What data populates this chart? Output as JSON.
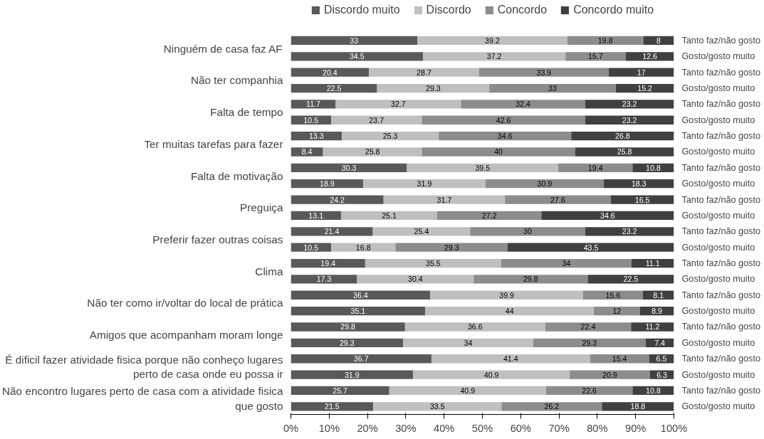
{
  "chart_data": {
    "type": "bar",
    "orientation": "horizontal",
    "stacked": true,
    "data_labels": true,
    "legend": "top",
    "grid": false,
    "categories": [
      "Tanto faz/não gosto",
      "Gosto/gosto muito",
      "Tanto faz/não gosto",
      "Gosto/gosto muito",
      "Tanto faz/não gosto",
      "Gosto/gosto muito",
      "Tanto faz/não gosto",
      "Gosto/gosto muito",
      "Tanto faz/não gosto",
      "Gosto/gosto muito",
      "Tanto faz/não gosto",
      "Gosto/gosto muito",
      "Tanto faz/não gosto",
      "Gosto/gosto muito",
      "Tanto faz/não gosto",
      "Gosto/gosto muito",
      "Tanto faz/não gosto",
      "Gosto/gosto muito",
      "Tanto faz/não gosto",
      "Gosto/gosto muito",
      "Tanto faz/não gosto",
      "Gosto/gosto muito",
      "Tanto faz/não gosto",
      "Gosto/gosto muito"
    ],
    "annotations": [
      "Ninguém de casa faz AF",
      "Não ter companhia",
      "Falta de tempo",
      "Ter muitas tarefas para fazer",
      "Falta de motivação",
      "Preguiça",
      "Preferir fazer outras coisas",
      "Clima",
      "Não ter como ir/voltar do local de prática",
      "Amigos que acompanham moram longe",
      "É dificil fazer atividade fisica porque não conheço lugares\nperto de casa onde eu possa ir",
      "Não encontro lugares perto de casa com a atividade fisica\nque gosto"
    ],
    "xlim": [
      0,
      100
    ],
    "xticks": [
      {
        "value": 0,
        "label": "0%"
      },
      {
        "value": 10,
        "label": "10%"
      },
      {
        "value": 20,
        "label": "20%"
      },
      {
        "value": 30,
        "label": "30%"
      },
      {
        "value": 40,
        "label": "40%"
      },
      {
        "value": 50,
        "label": "50%"
      },
      {
        "value": 60,
        "label": "60%"
      },
      {
        "value": 70,
        "label": "70%"
      },
      {
        "value": 80,
        "label": "80%"
      },
      {
        "value": 90,
        "label": "90%"
      },
      {
        "value": 100,
        "label": "100%"
      }
    ],
    "series": [
      {
        "name": "Discordo muito",
        "color": "#595959",
        "values": [
          33,
          34.5,
          20.4,
          22.5,
          11.7,
          10.5,
          13.3,
          8.4,
          30.3,
          18.9,
          24.2,
          13.1,
          21.4,
          10.5,
          19.4,
          17.3,
          36.4,
          35.1,
          29.8,
          29.3,
          36.7,
          31.9,
          25.7,
          21.5
        ]
      },
      {
        "name": "Discordo",
        "color": "#bfbfbf",
        "values": [
          39.2,
          37.2,
          28.7,
          29.3,
          32.7,
          23.7,
          25.3,
          25.8,
          39.5,
          31.9,
          31.7,
          25.1,
          25.4,
          16.8,
          35.5,
          30.4,
          39.9,
          44,
          36.6,
          34,
          41.4,
          40.9,
          40.9,
          33.5
        ]
      },
      {
        "name": "Concordo",
        "color": "#8c8c8c",
        "values": [
          19.8,
          15.7,
          33.9,
          33,
          32.4,
          42.6,
          34.6,
          40,
          19.4,
          30.9,
          27.6,
          27.2,
          30,
          29.3,
          34,
          29.8,
          15.6,
          12,
          22.4,
          29.3,
          15.4,
          20.9,
          22.6,
          26.2
        ]
      },
      {
        "name": "Concordo muito",
        "color": "#404040",
        "values": [
          8,
          12.6,
          17,
          15.2,
          23.2,
          23.2,
          26.8,
          25.8,
          10.8,
          18.3,
          16.5,
          34.6,
          23.2,
          43.5,
          11.1,
          22.5,
          8.1,
          8.9,
          11.2,
          7.4,
          6.5,
          6.3,
          10.8,
          18.8
        ]
      }
    ]
  }
}
